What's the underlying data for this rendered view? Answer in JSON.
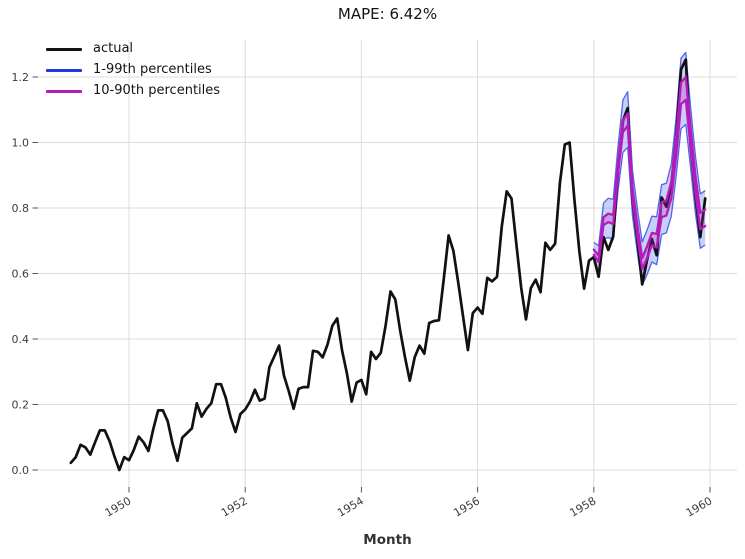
{
  "chart_data": {
    "type": "line",
    "title": "MAPE: 6.42%",
    "xlabel": "Month",
    "ylabel": "",
    "x_start": "1949-01",
    "frequency": "monthly",
    "n_points": 132,
    "grid": true,
    "legend_position": "top-left",
    "x_tick_labels": [
      "1950",
      "1952",
      "1954",
      "1956",
      "1958",
      "1960"
    ],
    "x_tick_months": [
      12,
      36,
      60,
      84,
      108,
      132
    ],
    "y_tick_labels": [
      "0.0",
      "0.2",
      "0.4",
      "0.6",
      "0.8",
      "1.0",
      "1.2"
    ],
    "y_ticks": [
      0,
      0.2,
      0.4,
      0.6,
      0.8,
      1.0,
      1.2
    ],
    "ylim": [
      -0.05,
      1.31
    ],
    "legend": [
      {
        "label": "actual",
        "color": "#111111"
      },
      {
        "label": "1-99th percentiles",
        "color": "#2238e0"
      },
      {
        "label": "10-90th percentiles",
        "color": "#b41bba"
      }
    ],
    "colors": {
      "grid": "#dcdcdc",
      "tick": "#555555",
      "tick_label": "#3c3c3c",
      "actual": "#111111",
      "blue_edge": "#2238e0",
      "blue_fill": "rgba(80,110,235,0.32)",
      "magenta_edge": "#b41bba",
      "magenta_fill": "rgba(185,35,195,0.28)"
    },
    "series": [
      {
        "name": "actual",
        "values": [
          0.022,
          0.039,
          0.077,
          0.069,
          0.047,
          0.085,
          0.121,
          0.121,
          0.088,
          0.041,
          0.0,
          0.039,
          0.03,
          0.061,
          0.102,
          0.085,
          0.058,
          0.124,
          0.182,
          0.182,
          0.149,
          0.08,
          0.028,
          0.099,
          0.113,
          0.127,
          0.204,
          0.163,
          0.187,
          0.204,
          0.262,
          0.262,
          0.22,
          0.16,
          0.116,
          0.171,
          0.185,
          0.209,
          0.245,
          0.212,
          0.218,
          0.314,
          0.347,
          0.38,
          0.289,
          0.24,
          0.187,
          0.248,
          0.253,
          0.253,
          0.364,
          0.361,
          0.344,
          0.383,
          0.441,
          0.463,
          0.366,
          0.295,
          0.209,
          0.267,
          0.275,
          0.231,
          0.361,
          0.339,
          0.358,
          0.441,
          0.545,
          0.521,
          0.427,
          0.344,
          0.273,
          0.344,
          0.38,
          0.355,
          0.449,
          0.455,
          0.457,
          0.581,
          0.716,
          0.669,
          0.573,
          0.468,
          0.366,
          0.479,
          0.496,
          0.477,
          0.587,
          0.576,
          0.59,
          0.744,
          0.851,
          0.829,
          0.691,
          0.556,
          0.46,
          0.556,
          0.581,
          0.543,
          0.694,
          0.672,
          0.691,
          0.876,
          0.994,
          1.0,
          0.826,
          0.669,
          0.554,
          0.639,
          0.65,
          0.59,
          0.711,
          0.672,
          0.713,
          0.912,
          1.066,
          1.105,
          0.826,
          0.702,
          0.567,
          0.642,
          0.705,
          0.656,
          0.832,
          0.804,
          0.87,
          1.014,
          1.223,
          1.253,
          0.989,
          0.835,
          0.711,
          0.829
        ]
      }
    ],
    "forecast": {
      "start_index": 108,
      "median": [
        0.665,
        0.645,
        0.76,
        0.77,
        0.765,
        0.92,
        1.05,
        1.07,
        0.845,
        0.73,
        0.63,
        0.665,
        0.705,
        0.7,
        0.795,
        0.8,
        0.855,
        0.985,
        1.15,
        1.165,
        1.015,
        0.87,
        0.76,
        0.77
      ],
      "p90": [
        0.673,
        0.655,
        0.772,
        0.783,
        0.779,
        0.936,
        1.068,
        1.089,
        0.862,
        0.747,
        0.647,
        0.683,
        0.724,
        0.721,
        0.818,
        0.823,
        0.88,
        1.014,
        1.183,
        1.2,
        1.045,
        0.897,
        0.785,
        0.795
      ],
      "p10": [
        0.657,
        0.635,
        0.748,
        0.757,
        0.751,
        0.904,
        1.032,
        1.051,
        0.828,
        0.713,
        0.613,
        0.647,
        0.686,
        0.679,
        0.772,
        0.777,
        0.83,
        0.956,
        1.117,
        1.13,
        0.985,
        0.843,
        0.735,
        0.745
      ],
      "p99": [
        0.695,
        0.685,
        0.815,
        0.83,
        0.827,
        0.988,
        1.13,
        1.155,
        0.915,
        0.798,
        0.696,
        0.733,
        0.775,
        0.773,
        0.871,
        0.876,
        0.935,
        1.075,
        1.258,
        1.275,
        1.108,
        0.958,
        0.843,
        0.853
      ],
      "p01": [
        0.635,
        0.605,
        0.705,
        0.71,
        0.703,
        0.852,
        0.97,
        0.985,
        0.775,
        0.662,
        0.564,
        0.597,
        0.635,
        0.627,
        0.719,
        0.724,
        0.775,
        0.895,
        1.042,
        1.055,
        0.922,
        0.782,
        0.677,
        0.687
      ]
    }
  }
}
